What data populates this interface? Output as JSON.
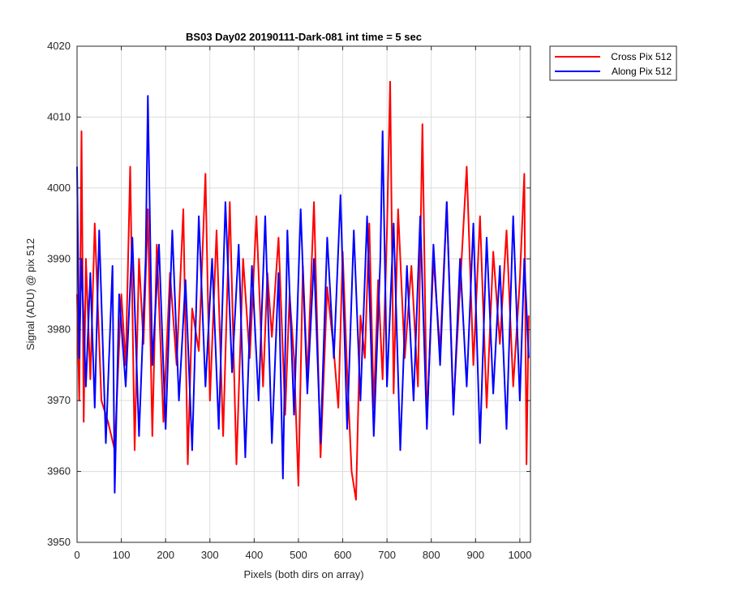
{
  "chart_data": {
    "type": "line",
    "title": "BS03 Day02 20190111-Dark-081 int time = 5 sec",
    "xlabel": "Pixels (both dirs on array)",
    "ylabel": "Signal (ADU) @ pix 512",
    "xlim": [
      0,
      1024
    ],
    "ylim": [
      3950,
      4020
    ],
    "xticks": [
      0,
      100,
      200,
      300,
      400,
      500,
      600,
      700,
      800,
      900,
      1000
    ],
    "yticks": [
      3950,
      3960,
      3970,
      3980,
      3990,
      4000,
      4010,
      4020
    ],
    "grid": true,
    "legend_position": "outside-top-right",
    "series": [
      {
        "name": "Cross Pix 512",
        "color": "#ff0000",
        "x": [
          0,
          5,
          10,
          15,
          20,
          30,
          40,
          55,
          70,
          85,
          100,
          110,
          120,
          130,
          140,
          150,
          160,
          170,
          180,
          195,
          210,
          225,
          240,
          250,
          260,
          275,
          290,
          300,
          315,
          330,
          345,
          360,
          375,
          390,
          405,
          420,
          430,
          440,
          455,
          470,
          480,
          490,
          500,
          510,
          520,
          535,
          550,
          565,
          580,
          590,
          600,
          610,
          620,
          630,
          640,
          650,
          660,
          670,
          680,
          690,
          700,
          707,
          715,
          725,
          740,
          755,
          770,
          780,
          790,
          805,
          820,
          835,
          850,
          865,
          880,
          895,
          910,
          925,
          940,
          955,
          970,
          985,
          1000,
          1010,
          1015,
          1020
        ],
        "y": [
          3985,
          3970,
          4008,
          3967,
          3990,
          3973,
          3995,
          3970,
          3967,
          3963,
          3985,
          3975,
          4003,
          3963,
          3990,
          3978,
          3997,
          3965,
          3992,
          3967,
          3988,
          3975,
          3997,
          3961,
          3983,
          3977,
          4002,
          3970,
          3994,
          3965,
          3998,
          3961,
          3990,
          3976,
          3996,
          3972,
          3988,
          3979,
          3993,
          3968,
          3985,
          3976,
          3958,
          3989,
          3973,
          3998,
          3962,
          3986,
          3977,
          3969,
          3991,
          3974,
          3960,
          3956,
          3982,
          3976,
          3995,
          3969,
          3987,
          3973,
          3994,
          4015,
          3971,
          3997,
          3976,
          3989,
          3972,
          4009,
          3967,
          3990,
          3977,
          3998,
          3969,
          3986,
          4003,
          3975,
          3996,
          3969,
          3991,
          3978,
          3994,
          3972,
          3987,
          4002,
          3961,
          3982
        ]
      },
      {
        "name": "Along Pix 512",
        "color": "#0000ff",
        "x": [
          0,
          5,
          10,
          20,
          30,
          40,
          50,
          65,
          80,
          85,
          95,
          110,
          125,
          140,
          155,
          160,
          170,
          185,
          200,
          215,
          230,
          245,
          260,
          275,
          290,
          305,
          320,
          335,
          350,
          365,
          380,
          395,
          410,
          425,
          440,
          455,
          465,
          475,
          490,
          505,
          520,
          535,
          550,
          565,
          580,
          595,
          610,
          625,
          640,
          655,
          670,
          685,
          690,
          700,
          715,
          730,
          745,
          760,
          775,
          790,
          805,
          820,
          835,
          850,
          865,
          880,
          895,
          910,
          925,
          940,
          955,
          970,
          985,
          1000,
          1010,
          1020
        ],
        "y": [
          4003,
          3976,
          3990,
          3972,
          3988,
          3969,
          3994,
          3964,
          3989,
          3957,
          3985,
          3972,
          3993,
          3965,
          3990,
          4013,
          3975,
          3992,
          3966,
          3994,
          3970,
          3987,
          3963,
          3996,
          3972,
          3990,
          3966,
          3998,
          3974,
          3992,
          3962,
          3989,
          3970,
          3996,
          3964,
          3988,
          3959,
          3994,
          3968,
          3997,
          3971,
          3990,
          3964,
          3993,
          3976,
          3999,
          3966,
          3994,
          3970,
          3996,
          3965,
          3990,
          4008,
          3972,
          3995,
          3963,
          3989,
          3970,
          3996,
          3966,
          3992,
          3975,
          3998,
          3968,
          3990,
          3972,
          3995,
          3964,
          3993,
          3971,
          3989,
          3966,
          3996,
          3970,
          3990,
          3976
        ]
      }
    ]
  }
}
